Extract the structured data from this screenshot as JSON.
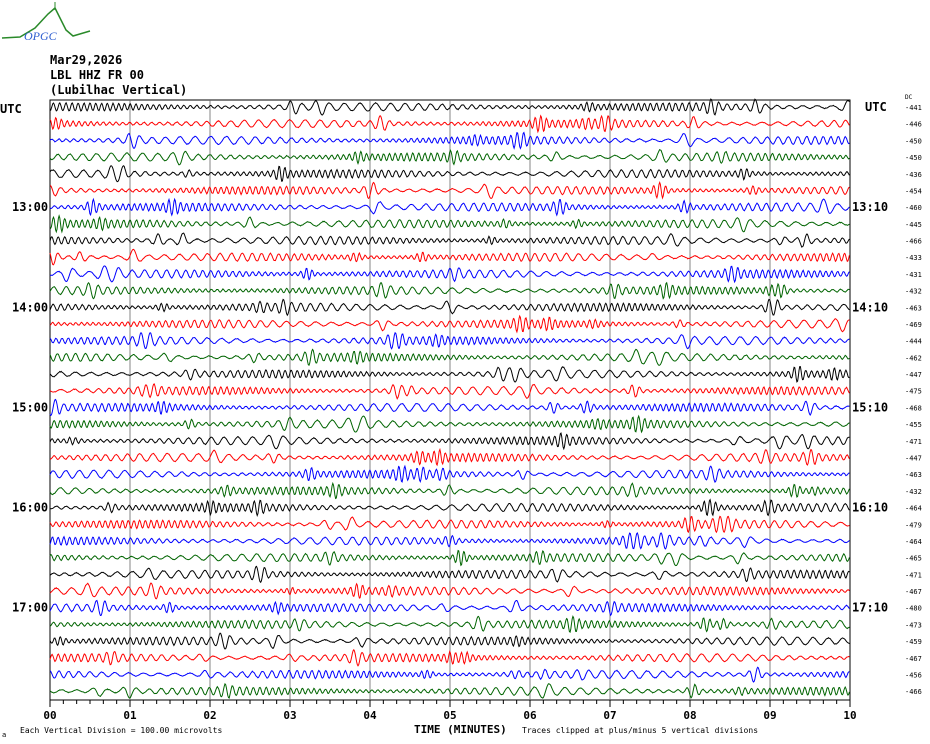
{
  "logo": {
    "text": "OPGC"
  },
  "header": {
    "date": "Mar29,2026",
    "station": "LBL HHZ FR 00",
    "location": "(Lubilhac Vertical)"
  },
  "footer": {
    "scale": "Each Vertical Division =  100.00 microvolts",
    "clip": "Traces clipped at plus/minus 5 vertical divisions",
    "corner_mark": "a"
  },
  "chart_data": {
    "type": "line",
    "title": "",
    "xlabel": "TIME (MINUTES)",
    "xlim": [
      0,
      10
    ],
    "x_ticks": [
      "00",
      "01",
      "02",
      "03",
      "04",
      "05",
      "06",
      "07",
      "08",
      "09",
      "10"
    ],
    "left_axis_header": "UTC",
    "right_axis_header": "UTC",
    "dc_header": "DC",
    "left_labels": [
      {
        "row": 0,
        "text": "UTC"
      },
      {
        "row": 6,
        "text": "13:00"
      },
      {
        "row": 12,
        "text": "14:00"
      },
      {
        "row": 18,
        "text": "15:00"
      },
      {
        "row": 24,
        "text": "16:00"
      },
      {
        "row": 30,
        "text": "17:00"
      }
    ],
    "right_labels": [
      {
        "row": 0,
        "text": "UTC"
      },
      {
        "row": 6,
        "text": "13:10"
      },
      {
        "row": 12,
        "text": "14:10"
      },
      {
        "row": 18,
        "text": "15:10"
      },
      {
        "row": 24,
        "text": "16:10"
      },
      {
        "row": 30,
        "text": "17:10"
      }
    ],
    "color_cycle": [
      "#000000",
      "#ff0000",
      "#0000ff",
      "#006400"
    ],
    "dc_offsets": [
      -441,
      -446,
      -450,
      -450,
      -436,
      -454,
      -460,
      -445,
      -466,
      -433,
      -431,
      -432,
      -463,
      -469,
      -444,
      -462,
      -447,
      -475,
      -468,
      -455,
      -471,
      -447,
      -463,
      -432,
      -464,
      -479,
      -464,
      -465,
      -471,
      -467,
      -480,
      -473,
      -459,
      -467,
      -456,
      -466
    ],
    "grid": true
  }
}
